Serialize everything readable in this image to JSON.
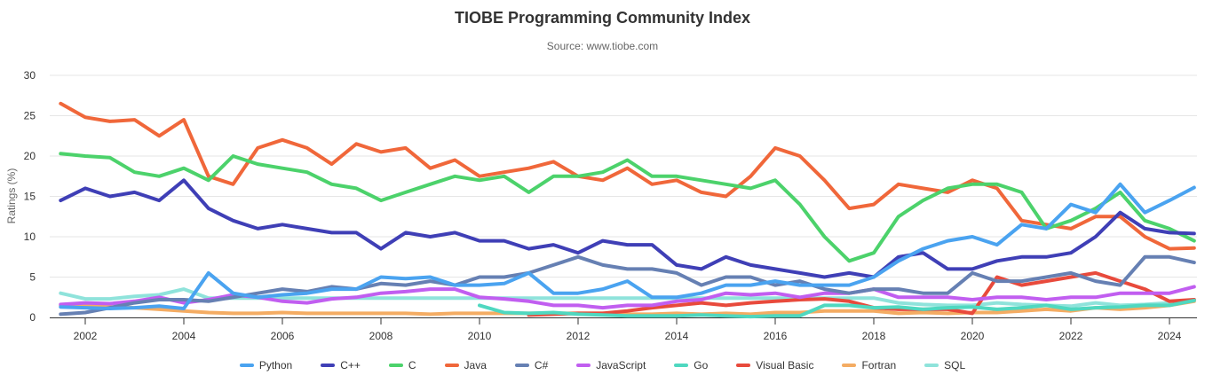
{
  "chart_data": {
    "type": "line",
    "title": "TIOBE Programming Community Index",
    "subtitle": "Source: www.tiobe.com",
    "xlabel": "",
    "ylabel": "Ratings (%)",
    "xlim": [
      2001.5,
      2024.6
    ],
    "ylim": [
      0,
      30
    ],
    "yticks": [
      0,
      5,
      10,
      15,
      20,
      25,
      30
    ],
    "xticks": [
      2002,
      2004,
      2006,
      2008,
      2010,
      2012,
      2014,
      2016,
      2018,
      2020,
      2022,
      2024
    ],
    "grid": true,
    "legend_position": "bottom",
    "x": [
      2001.5,
      2002,
      2002.5,
      2003,
      2003.5,
      2004,
      2004.5,
      2005,
      2005.5,
      2006,
      2006.5,
      2007,
      2007.5,
      2008,
      2008.5,
      2009,
      2009.5,
      2010,
      2010.5,
      2011,
      2011.5,
      2012,
      2012.5,
      2013,
      2013.5,
      2014,
      2014.5,
      2015,
      2015.5,
      2016,
      2016.5,
      2017,
      2017.5,
      2018,
      2018.5,
      2019,
      2019.5,
      2020,
      2020.5,
      2021,
      2021.5,
      2022,
      2022.5,
      2023,
      2023.5,
      2024,
      2024.5
    ],
    "series": [
      {
        "name": "Python",
        "color": "#4aa3f0",
        "values": [
          1.3,
          1.2,
          1.1,
          1.2,
          1.4,
          1.1,
          5.5,
          3.0,
          2.5,
          2.8,
          3.0,
          3.5,
          3.5,
          5.0,
          4.8,
          5.0,
          4.0,
          4.0,
          4.2,
          5.5,
          3.0,
          3.0,
          3.5,
          4.5,
          2.5,
          2.5,
          3.0,
          4.0,
          4.0,
          4.5,
          4.0,
          4.0,
          4.0,
          5.0,
          7.0,
          8.5,
          9.5,
          10.0,
          9.0,
          11.5,
          11.0,
          14.0,
          13.0,
          16.5,
          13.0,
          14.5,
          16.1
        ]
      },
      {
        "name": "C++",
        "color": "#3f3fb6",
        "values": [
          14.5,
          16.0,
          15.0,
          15.5,
          14.5,
          17.0,
          13.5,
          12.0,
          11.0,
          11.5,
          11.0,
          10.5,
          10.5,
          8.5,
          10.5,
          10.0,
          10.5,
          9.5,
          9.5,
          8.5,
          9.0,
          8.0,
          9.5,
          9.0,
          9.0,
          6.5,
          6.0,
          7.5,
          6.5,
          6.0,
          5.5,
          5.0,
          5.5,
          5.0,
          7.5,
          8.0,
          6.0,
          6.0,
          7.0,
          7.5,
          7.5,
          8.0,
          10.0,
          13.0,
          11.0,
          10.5,
          10.4
        ]
      },
      {
        "name": "C",
        "color": "#4cd26b",
        "values": [
          20.3,
          20.0,
          19.8,
          18.0,
          17.5,
          18.5,
          17.0,
          20.0,
          19.0,
          18.5,
          18.0,
          16.5,
          16.0,
          14.5,
          15.5,
          16.5,
          17.5,
          17.0,
          17.5,
          15.5,
          17.5,
          17.5,
          18.0,
          19.5,
          17.5,
          17.5,
          17.0,
          16.5,
          16.0,
          17.0,
          14.0,
          10.0,
          7.0,
          8.0,
          12.5,
          14.5,
          16.0,
          16.5,
          16.5,
          15.5,
          11.0,
          12.0,
          13.5,
          15.5,
          12.0,
          11.0,
          9.5
        ]
      },
      {
        "name": "Java",
        "color": "#f0673a",
        "values": [
          26.5,
          24.8,
          24.3,
          24.5,
          22.5,
          24.5,
          17.5,
          16.5,
          21.0,
          22.0,
          21.0,
          19.0,
          21.5,
          20.5,
          21.0,
          18.5,
          19.5,
          17.5,
          18.0,
          18.5,
          19.3,
          17.5,
          17.0,
          18.5,
          16.5,
          17.0,
          15.5,
          15.0,
          17.5,
          21.0,
          20.0,
          17.0,
          13.5,
          14.0,
          16.5,
          16.0,
          15.5,
          17.0,
          16.0,
          12.0,
          11.5,
          11.0,
          12.5,
          12.5,
          10.0,
          8.5,
          8.6
        ]
      },
      {
        "name": "C#",
        "color": "#6680b3",
        "values": [
          0.4,
          0.6,
          1.2,
          1.8,
          2.2,
          2.2,
          2.0,
          2.5,
          3.0,
          3.5,
          3.2,
          3.8,
          3.5,
          4.2,
          4.0,
          4.5,
          4.0,
          5.0,
          5.0,
          5.5,
          6.5,
          7.5,
          6.5,
          6.0,
          6.0,
          5.5,
          4.0,
          5.0,
          5.0,
          4.0,
          4.5,
          3.5,
          3.0,
          3.5,
          3.5,
          3.0,
          3.0,
          5.5,
          4.5,
          4.5,
          5.0,
          5.5,
          4.5,
          4.0,
          7.5,
          7.5,
          6.8
        ]
      },
      {
        "name": "JavaScript",
        "color": "#c15ef0",
        "values": [
          1.6,
          1.8,
          1.7,
          2.0,
          2.5,
          1.8,
          2.2,
          2.8,
          2.5,
          2.0,
          1.8,
          2.3,
          2.5,
          3.0,
          3.2,
          3.5,
          3.5,
          2.5,
          2.3,
          2.0,
          1.5,
          1.5,
          1.2,
          1.5,
          1.5,
          2.0,
          2.2,
          3.0,
          2.8,
          3.0,
          2.5,
          3.0,
          3.0,
          3.5,
          2.5,
          2.5,
          2.5,
          2.2,
          2.5,
          2.5,
          2.2,
          2.5,
          2.5,
          3.0,
          3.0,
          3.0,
          3.8
        ]
      },
      {
        "name": "Go",
        "color": "#4fd8c0",
        "values": [
          null,
          null,
          null,
          null,
          null,
          null,
          null,
          null,
          null,
          null,
          null,
          null,
          null,
          null,
          null,
          null,
          null,
          1.5,
          0.6,
          0.5,
          0.6,
          0.4,
          0.3,
          0.2,
          0.2,
          0.2,
          0.3,
          0.2,
          0.1,
          0.2,
          0.2,
          1.5,
          1.5,
          1.2,
          1.3,
          1.0,
          1.2,
          1.3,
          1.0,
          1.2,
          1.5,
          1.0,
          1.2,
          1.3,
          1.5,
          1.5,
          2.1
        ]
      },
      {
        "name": "Visual Basic",
        "color": "#e84a3c",
        "values": [
          null,
          null,
          null,
          null,
          null,
          null,
          null,
          null,
          null,
          null,
          null,
          null,
          null,
          null,
          null,
          null,
          null,
          null,
          null,
          0.3,
          0.4,
          0.5,
          0.5,
          0.8,
          1.2,
          1.5,
          1.8,
          1.5,
          1.8,
          2.0,
          2.2,
          2.3,
          2.0,
          1.2,
          1.0,
          1.0,
          1.0,
          0.5,
          5.0,
          4.0,
          4.5,
          5.0,
          5.5,
          4.5,
          3.5,
          2.0,
          2.2
        ]
      },
      {
        "name": "Fortran",
        "color": "#f4ac63",
        "values": [
          1.5,
          1.4,
          1.3,
          1.2,
          1.0,
          0.8,
          0.6,
          0.5,
          0.5,
          0.6,
          0.5,
          0.5,
          0.5,
          0.5,
          0.5,
          0.4,
          0.5,
          0.5,
          0.5,
          0.5,
          0.5,
          0.5,
          0.5,
          0.4,
          0.4,
          0.5,
          0.4,
          0.5,
          0.4,
          0.6,
          0.6,
          0.8,
          0.8,
          0.8,
          0.5,
          0.6,
          0.5,
          0.6,
          0.6,
          0.8,
          1.0,
          0.8,
          1.2,
          1.0,
          1.2,
          1.5,
          2.0
        ]
      },
      {
        "name": "SQL",
        "color": "#8fe3db",
        "values": [
          3.0,
          2.3,
          2.3,
          2.6,
          2.8,
          3.5,
          2.4,
          2.4,
          2.4,
          2.4,
          2.4,
          2.4,
          2.4,
          2.4,
          2.4,
          2.4,
          2.4,
          2.4,
          2.4,
          2.4,
          2.4,
          2.4,
          2.4,
          2.4,
          2.4,
          2.4,
          2.4,
          2.4,
          2.4,
          2.4,
          2.4,
          2.4,
          2.4,
          2.4,
          1.8,
          1.6,
          1.5,
          1.5,
          1.8,
          1.6,
          1.5,
          1.4,
          1.8,
          1.5,
          1.6,
          1.8,
          2.2
        ]
      }
    ]
  }
}
